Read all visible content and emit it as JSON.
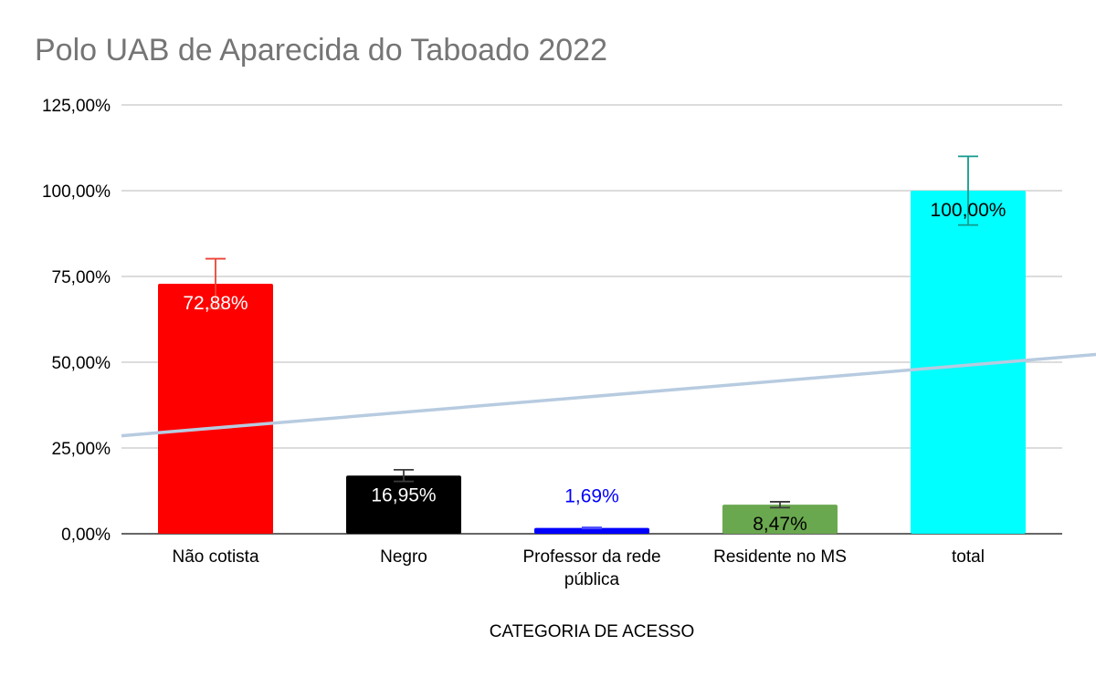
{
  "chart_data": {
    "type": "bar",
    "title": "Polo UAB de Aparecida do Taboado 2022",
    "xlabel": "CATEGORIA DE ACESSO",
    "ylabel": "",
    "ylim": [
      0,
      125
    ],
    "yticks": [
      "0,00%",
      "25,00%",
      "50,00%",
      "75,00%",
      "100,00%",
      "125,00%"
    ],
    "grid": true,
    "legend": "none",
    "categories": [
      {
        "label_lines": [
          "Não cotista"
        ],
        "label": "Não cotista"
      },
      {
        "label_lines": [
          "Negro"
        ],
        "label": "Negro"
      },
      {
        "label_lines": [
          "Professor da rede",
          "pública"
        ],
        "label": "Professor da rede pública"
      },
      {
        "label_lines": [
          "Residente no MS"
        ],
        "label": "Residente no MS"
      },
      {
        "label_lines": [
          "total"
        ],
        "label": "total"
      }
    ],
    "values": [
      72.88,
      16.95,
      1.69,
      8.47,
      100.0
    ],
    "data_labels": [
      "72,88%",
      "16,95%",
      "1,69%",
      "8,47%",
      "100,00%"
    ],
    "bar_colors": [
      "#ff0000",
      "#000000",
      "#0000ff",
      "#6aa84f",
      "#00ffff"
    ],
    "label_colors": [
      "#ffffff",
      "#ffffff",
      "#0000ff",
      "#000000",
      "#000000"
    ],
    "error_bar_colors": [
      "#ea4335",
      "#3c3c3c",
      "#4a4aff",
      "#3c3c3c",
      "#129a8e"
    ],
    "error_bars": [
      7.29,
      1.7,
      0.17,
      0.85,
      10.0
    ],
    "trendline": {
      "type": "linear",
      "color": "#b7cbe0"
    }
  }
}
